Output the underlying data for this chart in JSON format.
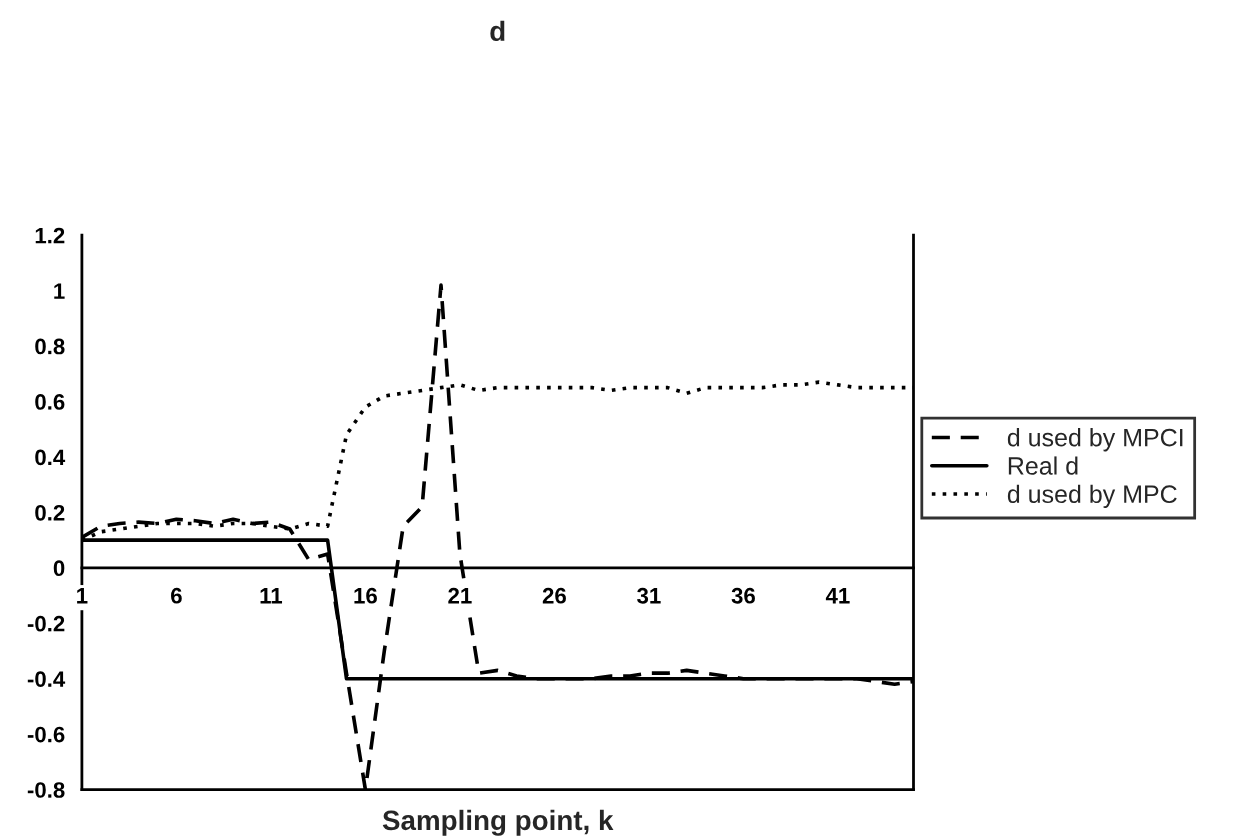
{
  "chart_data": {
    "type": "line",
    "title": "d",
    "xlabel": "Sampling point, k",
    "x": [
      1,
      2,
      3,
      4,
      5,
      6,
      7,
      8,
      9,
      10,
      11,
      12,
      13,
      14,
      15,
      16,
      17,
      18,
      19,
      20,
      21,
      22,
      23,
      24,
      25,
      26,
      27,
      28,
      29,
      30,
      31,
      32,
      33,
      34,
      35,
      36,
      37,
      38,
      39,
      40,
      41,
      42,
      43,
      44,
      45
    ],
    "series": [
      {
        "name": "d used by MPCI",
        "color": "#000000",
        "line_style": "dashed",
        "values": [
          0.11,
          0.15,
          0.16,
          0.165,
          0.16,
          0.175,
          0.17,
          0.16,
          0.175,
          0.16,
          0.165,
          0.14,
          0.03,
          0.05,
          -0.38,
          -0.8,
          -0.3,
          0.15,
          0.22,
          1.02,
          0.05,
          -0.38,
          -0.37,
          -0.39,
          -0.4,
          -0.4,
          -0.4,
          -0.4,
          -0.39,
          -0.39,
          -0.38,
          -0.38,
          -0.37,
          -0.38,
          -0.39,
          -0.4,
          -0.4,
          -0.4,
          -0.4,
          -0.4,
          -0.4,
          -0.4,
          -0.41,
          -0.42,
          -0.41
        ]
      },
      {
        "name": "Real d",
        "color": "#000000",
        "line_style": "solid",
        "values": [
          0.1,
          0.1,
          0.1,
          0.1,
          0.1,
          0.1,
          0.1,
          0.1,
          0.1,
          0.1,
          0.1,
          0.1,
          0.1,
          0.1,
          -0.4,
          -0.4,
          -0.4,
          -0.4,
          -0.4,
          -0.4,
          -0.4,
          -0.4,
          -0.4,
          -0.4,
          -0.4,
          -0.4,
          -0.4,
          -0.4,
          -0.4,
          -0.4,
          -0.4,
          -0.4,
          -0.4,
          -0.4,
          -0.4,
          -0.4,
          -0.4,
          -0.4,
          -0.4,
          -0.4,
          -0.4,
          -0.4,
          -0.4,
          -0.4,
          -0.4
        ]
      },
      {
        "name": "d used by MPC",
        "color": "#000000",
        "line_style": "dotted",
        "values": [
          0.1,
          0.13,
          0.14,
          0.15,
          0.16,
          0.16,
          0.16,
          0.15,
          0.16,
          0.16,
          0.15,
          0.14,
          0.16,
          0.15,
          0.48,
          0.58,
          0.62,
          0.63,
          0.64,
          0.65,
          0.66,
          0.64,
          0.65,
          0.65,
          0.65,
          0.65,
          0.65,
          0.65,
          0.64,
          0.65,
          0.65,
          0.65,
          0.63,
          0.65,
          0.65,
          0.65,
          0.65,
          0.66,
          0.66,
          0.67,
          0.66,
          0.65,
          0.65,
          0.65,
          0.65
        ]
      }
    ],
    "xlim": [
      1,
      45
    ],
    "xticks": [
      1,
      6,
      11,
      16,
      21,
      26,
      31,
      36,
      41
    ],
    "ylim": [
      -0.8,
      1.2
    ],
    "yticks": [
      -0.8,
      -0.6,
      -0.4,
      -0.2,
      0,
      0.2,
      0.4,
      0.6,
      0.8,
      1,
      1.2
    ],
    "grid": false,
    "legend": "right"
  }
}
